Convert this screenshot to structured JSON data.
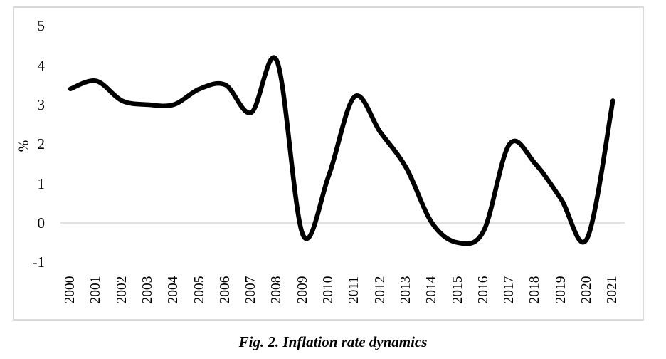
{
  "figure": {
    "caption": "Fig. 2. Inflation rate dynamics",
    "y_axis_title": "%"
  },
  "chart_data": {
    "type": "line",
    "title": "Fig. 2. Inflation rate dynamics",
    "xlabel": "",
    "ylabel": "%",
    "x": [
      "2000",
      "2001",
      "2002",
      "2003",
      "2004",
      "2005",
      "2006",
      "2007",
      "2008",
      "2009",
      "2010",
      "2011",
      "2012",
      "2013",
      "2014",
      "2015",
      "2016",
      "2017",
      "2018",
      "2019",
      "2020",
      "2021"
    ],
    "series": [
      {
        "name": "Inflation rate (%)",
        "values": [
          3.4,
          3.6,
          3.1,
          3.0,
          3.0,
          3.4,
          3.5,
          2.8,
          4.1,
          -0.3,
          1.2,
          3.2,
          2.3,
          1.4,
          0.0,
          -0.5,
          -0.2,
          2.0,
          1.5,
          0.6,
          -0.4,
          3.1
        ]
      }
    ],
    "ylim": [
      -1,
      5
    ],
    "yticks": [
      5,
      4,
      3,
      2,
      1,
      0,
      -1
    ],
    "grid": "horizontal-zero-line-only",
    "legend": "none",
    "smooth": true,
    "line_color": "#000000",
    "grid_color": "#d9d9d9",
    "frame_color": "#d9d9d9"
  }
}
